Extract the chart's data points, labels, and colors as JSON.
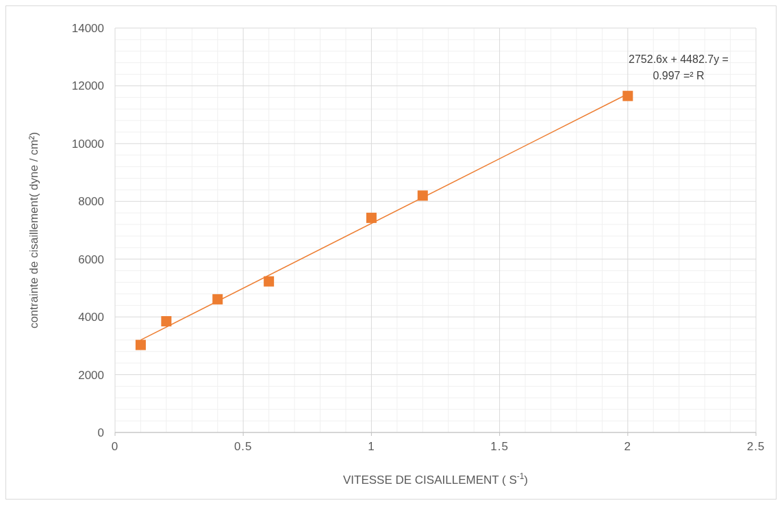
{
  "chart_data": {
    "type": "scatter",
    "xlabel": "VITESSE DE CISAILLEMENT ( S$^{-1}$)",
    "ylabel": "contrainte de cisaillement( dyne / cm²)",
    "x": [
      0.1,
      0.2,
      0.4,
      0.6,
      1.0,
      1.2,
      2.0
    ],
    "series": [
      {
        "color": "#ed7d31",
        "marker": "square",
        "values": [
          3030,
          3850,
          4610,
          5230,
          7430,
          8200,
          11650
        ]
      },
      {
        "type": "line",
        "color": "#ed7d31",
        "marker": "none",
        "x": [
          0.1,
          2.0
        ],
        "values": [
          3200,
          11720
        ]
      }
    ],
    "annotations": [
      "2752.6x + 4482.7y =",
      "0.997 =² R"
    ],
    "xlim": [
      0,
      2.5
    ],
    "xticks": [
      0,
      0.5,
      1,
      1.5,
      2,
      2.5
    ],
    "ylim": [
      0,
      14000
    ],
    "yticks": [
      0,
      2000,
      4000,
      6000,
      8000,
      10000,
      12000,
      14000
    ],
    "grid": true
  }
}
